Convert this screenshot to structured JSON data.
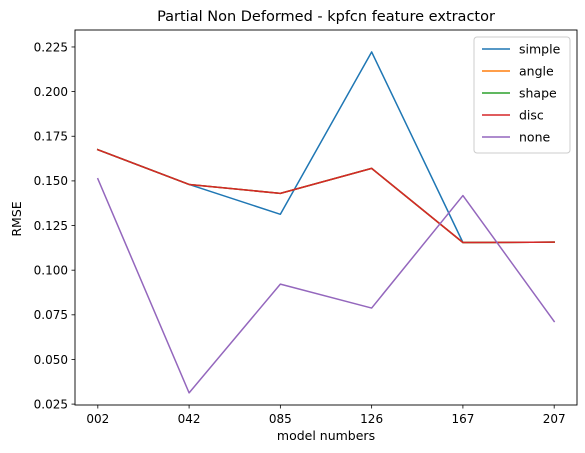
{
  "chart_data": {
    "type": "line",
    "title": "Partial Non Deformed - kpfcn feature extractor",
    "xlabel": "model numbers",
    "ylabel": "RMSE",
    "categories": [
      "002",
      "042",
      "085",
      "126",
      "167",
      "207"
    ],
    "ylim": [
      0.0245,
      0.2345
    ],
    "yticks": [
      0.025,
      0.05,
      0.075,
      0.1,
      0.125,
      0.15,
      0.175,
      0.2,
      0.225
    ],
    "ytick_labels": [
      "0.025",
      "0.050",
      "0.075",
      "0.100",
      "0.125",
      "0.150",
      "0.175",
      "0.200",
      "0.225"
    ],
    "grid": false,
    "legend_position": "top-right",
    "series": [
      {
        "name": "simple",
        "color": "#1f77b4",
        "values": [
          0.1675,
          0.148,
          0.1313,
          0.2222,
          0.1155,
          0.1157
        ]
      },
      {
        "name": "angle",
        "color": "#ff7f0e",
        "values": [
          0.1675,
          0.148,
          0.143,
          0.157,
          0.1155,
          0.1157
        ]
      },
      {
        "name": "shape",
        "color": "#2ca02c",
        "values": [
          0.1675,
          0.148,
          0.143,
          0.157,
          0.1155,
          0.1157
        ]
      },
      {
        "name": "disc",
        "color": "#d62728",
        "values": [
          0.1675,
          0.148,
          0.143,
          0.157,
          0.1155,
          0.1157
        ]
      },
      {
        "name": "none",
        "color": "#9467bd",
        "values": [
          0.1512,
          0.0313,
          0.0922,
          0.0788,
          0.1418,
          0.0713
        ]
      }
    ]
  }
}
